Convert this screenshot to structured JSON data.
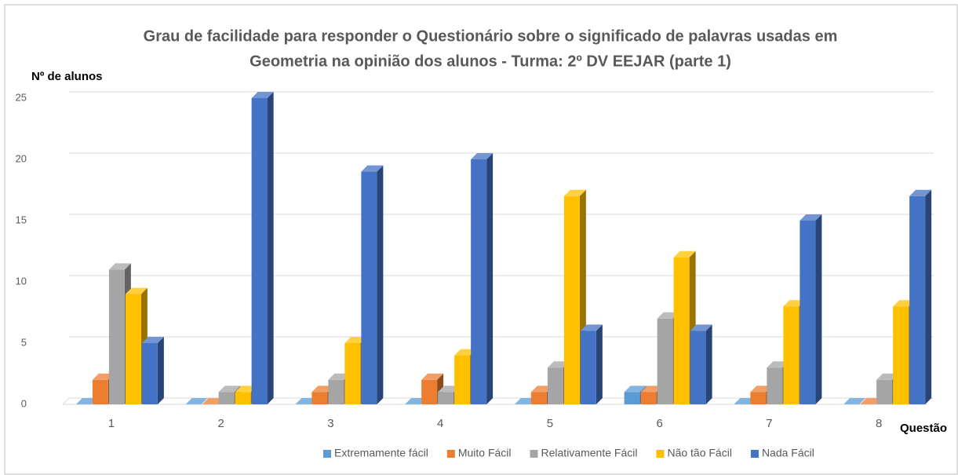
{
  "chart_data": {
    "type": "bar3d",
    "title": [
      "Grau de facilidade para responder o Questionário sobre o significado de palavras usadas em",
      "Geometria na opinião dos alunos - Turma: 2º DV EEJAR (parte 1)"
    ],
    "y_label": "Nº de alunos",
    "x_label": "Questão",
    "categories": [
      "1",
      "2",
      "3",
      "4",
      "5",
      "6",
      "7",
      "8"
    ],
    "series": [
      {
        "name": "Extremamente fácil",
        "color": "#5B9BD5",
        "values": [
          0,
          0,
          0,
          0,
          0,
          1,
          0,
          0
        ]
      },
      {
        "name": "Muito Fácil",
        "color": "#ED7D31",
        "values": [
          2,
          0,
          1,
          2,
          1,
          1,
          1,
          0
        ]
      },
      {
        "name": "Relativamente Fácil",
        "color": "#A5A5A5",
        "values": [
          11,
          1,
          2,
          1,
          3,
          7,
          3,
          2
        ]
      },
      {
        "name": "Não tão Fácil",
        "color": "#FFC000",
        "values": [
          9,
          1,
          5,
          4,
          17,
          12,
          8,
          8
        ]
      },
      {
        "name": "Nada Fácil",
        "color": "#4472C4",
        "values": [
          5,
          25,
          19,
          20,
          6,
          6,
          15,
          17
        ]
      }
    ],
    "ylim": [
      0,
      25
    ],
    "yticks": [
      0,
      5,
      10,
      15,
      20,
      25
    ],
    "grid": true,
    "legend": "bottom"
  }
}
